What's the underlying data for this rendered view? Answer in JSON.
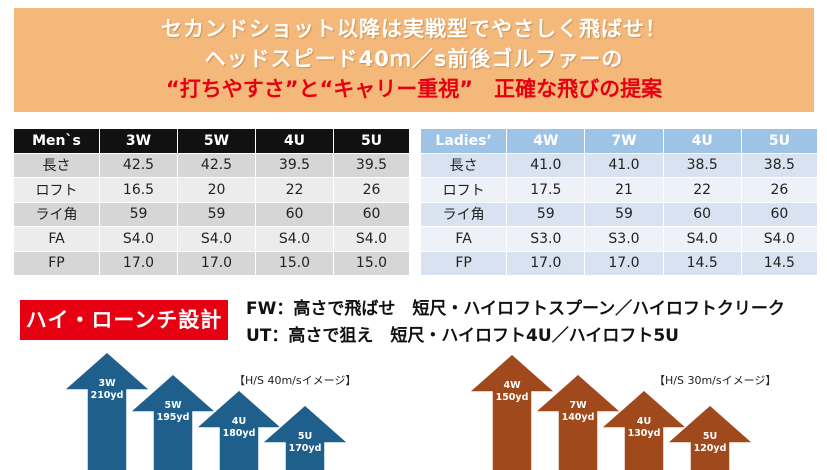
{
  "banner": {
    "line1": "セカンドショット以降は実戦型でやさしく飛ばせ！",
    "line2": "ヘッドスピード40ｍ／s前後ゴルファーの",
    "line3": "“打ちやすさ”と“キャリー重視”　正確な飛びの提案"
  },
  "mens_table": {
    "headers": [
      "Men`s",
      "3W",
      "5W",
      "4U",
      "5U"
    ],
    "rows": [
      [
        "長さ",
        "42.5",
        "42.5",
        "39.5",
        "39.5"
      ],
      [
        "ロフト",
        "16.5",
        "20",
        "22",
        "26"
      ],
      [
        "ライ角",
        "59",
        "59",
        "60",
        "60"
      ],
      [
        "FA",
        "S4.0",
        "S4.0",
        "S4.0",
        "S4.0"
      ],
      [
        "FP",
        "17.0",
        "17.0",
        "15.0",
        "15.0"
      ]
    ]
  },
  "ladies_table": {
    "headers": [
      "Ladies’",
      "4W",
      "7W",
      "4U",
      "5U"
    ],
    "rows": [
      [
        "長さ",
        "41.0",
        "41.0",
        "38.5",
        "38.5"
      ],
      [
        "ロフト",
        "17.5",
        "21",
        "22",
        "26"
      ],
      [
        "ライ角",
        "59",
        "59",
        "60",
        "60"
      ],
      [
        "FA",
        "S3.0",
        "S3.0",
        "S4.0",
        "S4.0"
      ],
      [
        "FP",
        "17.0",
        "17.0",
        "14.5",
        "14.5"
      ]
    ]
  },
  "badge": "ハイ・ローンチ設計",
  "descriptions": {
    "fw": "FW：高さで飛ばせ　短尺・ハイロフトスプーン／ハイロフトクリーク",
    "ut": "UT：高さで狙え　短尺・ハイロフト4U／ハイロフト5U"
  },
  "mens_chart": {
    "label": "【H/S 40m/sイメージ】",
    "color": "#1f5f8b",
    "arrows": [
      {
        "club": "3W",
        "carry": "210yd"
      },
      {
        "club": "5W",
        "carry": "195yd"
      },
      {
        "club": "4U",
        "carry": "180yd"
      },
      {
        "club": "5U",
        "carry": "170yd"
      }
    ]
  },
  "ladies_chart": {
    "label": "【H/S 30m/sイメージ】",
    "color": "#a0491c",
    "arrows": [
      {
        "club": "4W",
        "carry": "150yd"
      },
      {
        "club": "7W",
        "carry": "140yd"
      },
      {
        "club": "4U",
        "carry": "130yd"
      },
      {
        "club": "5U",
        "carry": "120yd"
      }
    ]
  }
}
